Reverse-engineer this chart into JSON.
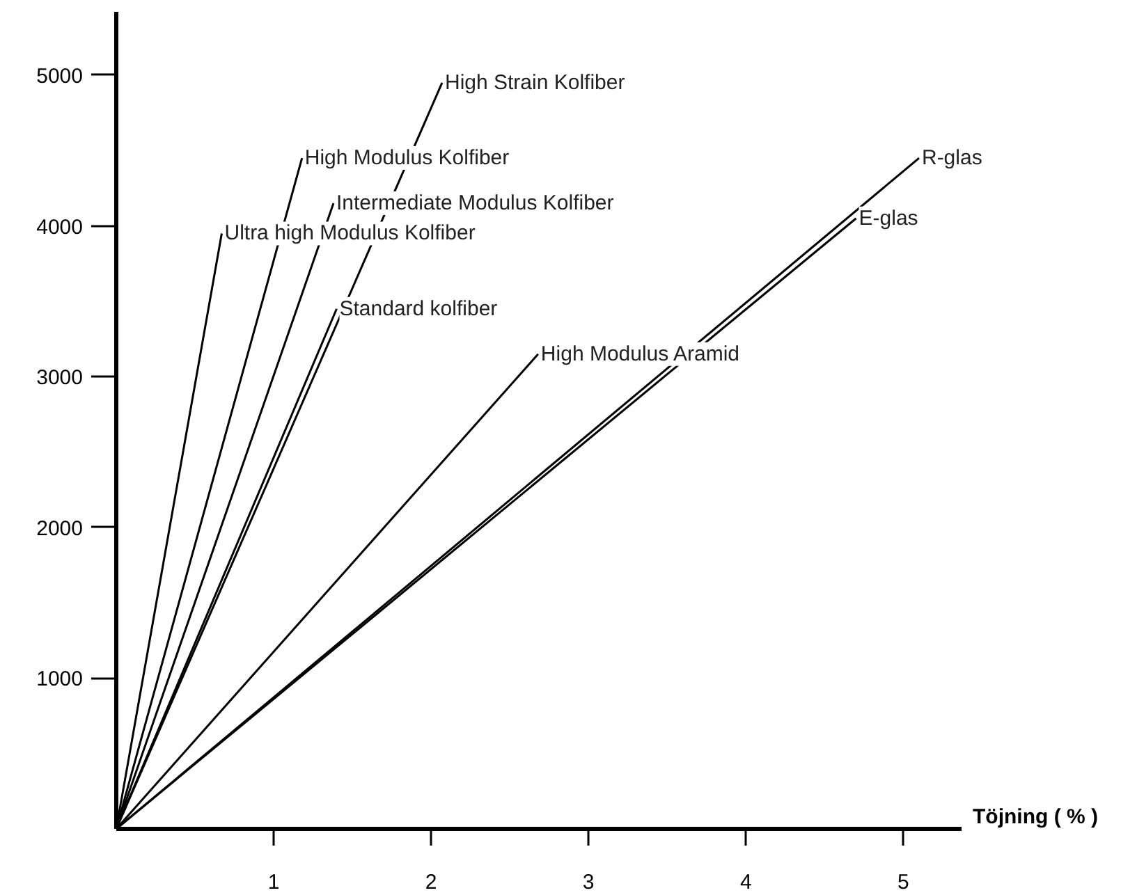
{
  "chart_data": {
    "type": "line",
    "xlabel": "Töjning ( % )",
    "xlim": [
      0,
      5.37
    ],
    "ylim": [
      0,
      5420
    ],
    "xticks": [
      1,
      2,
      3,
      4,
      5
    ],
    "yticks": [
      1000,
      2000,
      3000,
      4000,
      5000
    ],
    "grid": false,
    "marker": "none",
    "line_style": "solid",
    "series": [
      {
        "name": "Ultra high Modulus Kolfiber",
        "color": "#000000",
        "x": [
          0,
          0.67
        ],
        "values": [
          0,
          3950
        ]
      },
      {
        "name": "High Modulus Kolfiber",
        "color": "#000000",
        "x": [
          0,
          1.18
        ],
        "values": [
          0,
          4450
        ]
      },
      {
        "name": "Intermediate Modulus Kolfiber",
        "color": "#000000",
        "x": [
          0,
          1.38
        ],
        "values": [
          0,
          4150
        ]
      },
      {
        "name": "Standard kolfiber",
        "color": "#000000",
        "x": [
          0,
          1.4
        ],
        "values": [
          0,
          3450
        ]
      },
      {
        "name": "High Strain Kolfiber",
        "color": "#000000",
        "x": [
          0,
          2.07
        ],
        "values": [
          0,
          4950
        ]
      },
      {
        "name": "High Modulus Aramid",
        "color": "#000000",
        "x": [
          0,
          2.68
        ],
        "values": [
          0,
          3150
        ]
      },
      {
        "name": "R-glas",
        "color": "#000000",
        "x": [
          0,
          5.1
        ],
        "values": [
          0,
          4450
        ]
      },
      {
        "name": "E-glas",
        "color": "#000000",
        "x": [
          0,
          4.7
        ],
        "values": [
          0,
          4050
        ]
      }
    ]
  }
}
